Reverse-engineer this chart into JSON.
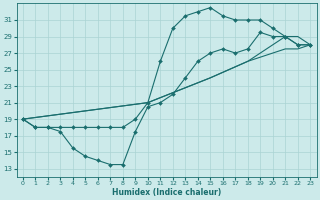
{
  "xlabel": "Humidex (Indice chaleur)",
  "bg_color": "#cceaea",
  "grid_color": "#aad4d4",
  "line_color": "#1a6e6e",
  "xlim": [
    -0.5,
    23.5
  ],
  "ylim": [
    12,
    33
  ],
  "xticks": [
    0,
    1,
    2,
    3,
    4,
    5,
    6,
    7,
    8,
    9,
    10,
    11,
    12,
    13,
    14,
    15,
    16,
    17,
    18,
    19,
    20,
    21,
    22,
    23
  ],
  "yticks": [
    13,
    15,
    17,
    19,
    21,
    23,
    25,
    27,
    29,
    31
  ],
  "line1": {
    "x": [
      0,
      1,
      2,
      3,
      4,
      5,
      6,
      7,
      8,
      9,
      10,
      11,
      12,
      13,
      14,
      15,
      16,
      17,
      18,
      19,
      20,
      21,
      22,
      23
    ],
    "y": [
      19,
      18,
      18,
      17.5,
      15.5,
      14.5,
      14,
      13.5,
      13.5,
      17.5,
      20.5,
      21,
      22,
      24,
      26,
      27,
      27.5,
      27,
      27.5,
      29.5,
      29,
      29,
      28,
      28
    ]
  },
  "line2": {
    "x": [
      0,
      1,
      2,
      3,
      4,
      5,
      6,
      7,
      8,
      9,
      10,
      11,
      12,
      13,
      14,
      15,
      16,
      17,
      18,
      19,
      20,
      21,
      22,
      23
    ],
    "y": [
      19,
      18,
      18,
      18,
      18,
      18,
      18,
      18,
      18,
      19,
      21,
      26,
      30,
      31.5,
      32,
      32.5,
      31.5,
      31,
      31,
      31,
      30,
      29,
      28,
      28
    ]
  },
  "line3": {
    "x": [
      0,
      10,
      15,
      18,
      20,
      21,
      22,
      23
    ],
    "y": [
      19,
      21,
      24,
      26,
      28,
      29,
      29,
      28
    ]
  },
  "line4": {
    "x": [
      0,
      10,
      15,
      18,
      20,
      21,
      22,
      23
    ],
    "y": [
      19,
      21,
      24,
      26,
      27,
      27.5,
      27.5,
      28
    ]
  }
}
